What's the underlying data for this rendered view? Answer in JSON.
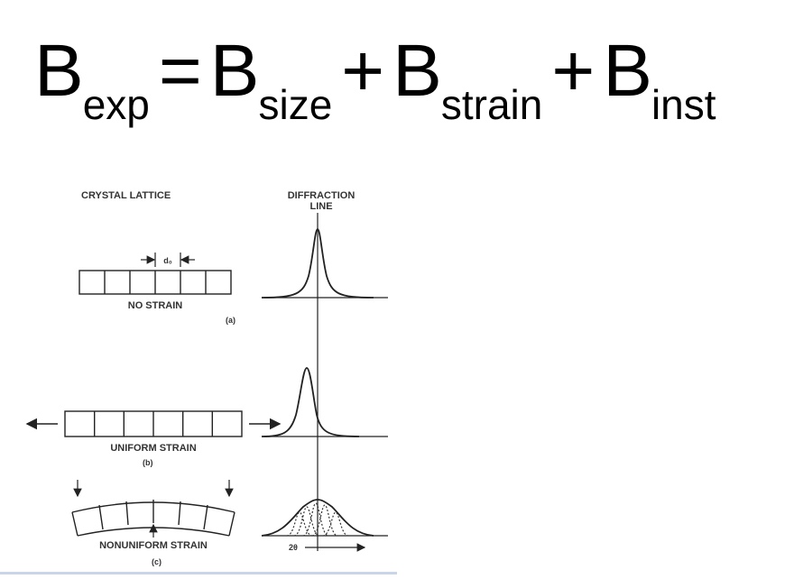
{
  "equation": {
    "terms": [
      {
        "base": "B",
        "sub": "exp"
      },
      {
        "base": "B",
        "sub": "size"
      },
      {
        "base": "B",
        "sub": "strain"
      },
      {
        "base": "B",
        "sub": "inst"
      }
    ],
    "equals": "=",
    "plus": "+"
  },
  "figure": {
    "col_crystal": "CRYSTAL LATTICE",
    "col_diffraction_1": "DIFFRACTION",
    "col_diffraction_2": "LINE",
    "d0_label": "d₀",
    "panel_a": {
      "caption": "NO STRAIN",
      "letter": "(a)"
    },
    "panel_b": {
      "caption": "UNIFORM STRAIN",
      "letter": "(b)"
    },
    "panel_c": {
      "caption": "NONUNIFORM STRAIN",
      "letter": "(c)"
    },
    "axis_label": "2θ"
  }
}
